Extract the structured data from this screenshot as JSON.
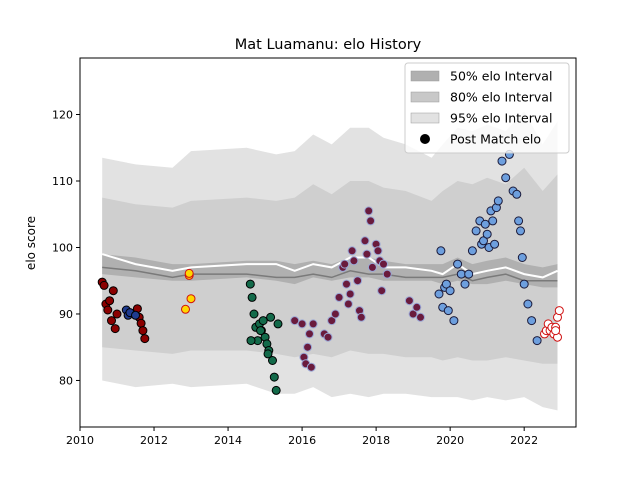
{
  "chart_data": {
    "type": "scatter",
    "title": "Mat Luamanu: elo History",
    "xlabel": "",
    "ylabel": "elo score",
    "xlim": [
      2010.0,
      2023.4
    ],
    "ylim": [
      73,
      128.5
    ],
    "xticks": [
      2010,
      2012,
      2014,
      2016,
      2018,
      2020,
      2022
    ],
    "xtick_labels": [
      "2010",
      "2012",
      "2014",
      "2016",
      "2018",
      "2020",
      "2022"
    ],
    "yticks": [
      80,
      90,
      100,
      110,
      120
    ],
    "ytick_labels": [
      "80",
      "90",
      "100",
      "110",
      "120"
    ],
    "grid": false,
    "legend_position": "top-right",
    "legend": [
      {
        "label": "50% elo Interval",
        "kind": "patch",
        "color": "#b0b0b0"
      },
      {
        "label": "80% elo Interval",
        "kind": "patch",
        "color": "#c8c8c8"
      },
      {
        "label": "95% elo Interval",
        "kind": "patch",
        "color": "#e2e2e2"
      },
      {
        "label": "Post Match elo",
        "kind": "marker",
        "color": "#000000"
      }
    ],
    "band_x": [
      2010.6,
      2011.5,
      2012.5,
      2013.0,
      2014.5,
      2015.3,
      2015.8,
      2016.3,
      2016.8,
      2017.3,
      2017.8,
      2018.2,
      2018.8,
      2019.5,
      2019.8,
      2020.2,
      2020.6,
      2021.0,
      2021.5,
      2022.0,
      2022.5,
      2022.9
    ],
    "bands": {
      "p95_upper": [
        113.5,
        112.5,
        112.0,
        114.5,
        115.0,
        114.0,
        114.5,
        117.0,
        115.5,
        118.0,
        118.0,
        116.5,
        115.5,
        113.5,
        115.5,
        118.0,
        117.5,
        118.5,
        117.5,
        120.5,
        115.5,
        119.0
      ],
      "p80_upper": [
        107.5,
        106.5,
        106.0,
        107.0,
        107.5,
        107.0,
        107.5,
        109.5,
        108.0,
        110.0,
        110.0,
        109.0,
        108.5,
        107.0,
        108.5,
        110.0,
        109.5,
        110.5,
        109.5,
        112.0,
        108.5,
        111.0
      ],
      "p50_upper": [
        99.0,
        98.5,
        97.5,
        97.5,
        98.0,
        98.0,
        97.5,
        98.0,
        97.5,
        98.5,
        98.5,
        98.0,
        97.5,
        97.5,
        97.5,
        98.5,
        97.5,
        98.0,
        98.5,
        97.5,
        97.0,
        97.5
      ],
      "median": [
        97.0,
        96.5,
        95.5,
        96.0,
        96.0,
        95.5,
        95.5,
        96.0,
        95.5,
        96.5,
        96.0,
        96.0,
        95.5,
        95.5,
        95.5,
        96.0,
        95.0,
        95.5,
        96.0,
        95.0,
        95.0,
        95.0
      ],
      "mean": [
        99.0,
        97.5,
        96.5,
        97.0,
        97.5,
        97.5,
        96.5,
        97.5,
        97.0,
        98.5,
        98.5,
        97.0,
        97.0,
        96.5,
        96.0,
        97.5,
        96.0,
        96.5,
        97.0,
        96.0,
        95.5,
        96.5
      ],
      "p50_lower": [
        96.0,
        95.5,
        95.0,
        95.0,
        95.5,
        95.0,
        94.5,
        95.5,
        95.0,
        95.5,
        95.5,
        95.0,
        95.0,
        95.0,
        94.5,
        95.0,
        94.5,
        94.5,
        95.0,
        94.5,
        94.0,
        94.0
      ],
      "p80_lower": [
        85.0,
        84.5,
        84.0,
        84.5,
        84.5,
        84.0,
        83.5,
        84.0,
        83.5,
        84.5,
        84.0,
        84.0,
        83.5,
        83.5,
        83.0,
        83.5,
        83.0,
        83.0,
        83.5,
        83.0,
        82.5,
        82.5
      ],
      "p95_lower": [
        80.0,
        79.0,
        79.5,
        79.0,
        79.5,
        78.0,
        78.0,
        79.0,
        77.5,
        78.0,
        77.5,
        78.0,
        78.0,
        77.5,
        77.5,
        77.5,
        77.0,
        77.5,
        77.0,
        77.5,
        76.0,
        75.5
      ]
    },
    "series": [
      {
        "face": "#8b0000",
        "edge": "#000000",
        "x": [
          2010.6,
          2010.65,
          2010.7,
          2010.75,
          2010.8,
          2010.85,
          2010.9,
          2010.95,
          2011.0,
          2011.55,
          2011.6,
          2011.65,
          2011.7,
          2011.75
        ],
        "y": [
          94.8,
          94.3,
          91.5,
          90.6,
          92.0,
          89.0,
          93.5,
          87.8,
          90.0,
          90.8,
          89.5,
          88.6,
          87.5,
          86.3
        ]
      },
      {
        "face": "#1f3b8f",
        "edge": "#000000",
        "x": [
          2011.25,
          2011.3,
          2011.35,
          2011.5
        ],
        "y": [
          90.6,
          89.8,
          90.2,
          89.8
        ]
      },
      {
        "face": "#ffd700",
        "edge": "#d01010",
        "x": [
          2012.85,
          2012.95,
          2013.0,
          2012.95
        ],
        "y": [
          90.7,
          95.8,
          92.3,
          96.1
        ]
      },
      {
        "face": "#136a4a",
        "edge": "#000000",
        "x": [
          2014.6,
          2014.65,
          2014.7,
          2014.75,
          2014.8,
          2014.85,
          2014.9,
          2014.95,
          2015.0,
          2015.05,
          2015.1,
          2015.15,
          2015.2,
          2015.25,
          2015.3,
          2015.35,
          2014.62,
          2014.88,
          2015.08
        ],
        "y": [
          94.5,
          92.5,
          90.0,
          88.0,
          86.0,
          88.5,
          87.5,
          89.0,
          86.5,
          85.5,
          84.5,
          89.5,
          83.0,
          80.5,
          78.5,
          88.5,
          86.0,
          87.5,
          84.0
        ]
      },
      {
        "face": "#6a1b3d",
        "edge": "#9aa7d6",
        "x": [
          2015.8,
          2016.0,
          2016.05,
          2016.1,
          2016.15,
          2016.2,
          2016.3,
          2016.6,
          2016.7,
          2016.8,
          2016.9,
          2017.0,
          2017.1,
          2017.15,
          2017.2,
          2017.3,
          2017.35,
          2017.4,
          2017.5,
          2017.55,
          2017.6,
          2017.7,
          2017.75,
          2017.8,
          2017.85,
          2017.9,
          2018.0,
          2018.05,
          2018.1,
          2018.15,
          2018.2,
          2018.3,
          2018.9,
          2019.0,
          2019.1,
          2019.2,
          2016.25,
          2017.25
        ],
        "y": [
          89.0,
          88.5,
          83.5,
          82.5,
          85.0,
          87.0,
          88.5,
          87.0,
          86.5,
          89.0,
          90.0,
          92.5,
          97.0,
          97.5,
          94.5,
          93.0,
          99.5,
          98.0,
          95.0,
          90.5,
          89.5,
          101.0,
          99.0,
          105.5,
          104.0,
          97.0,
          100.5,
          99.5,
          98.0,
          93.5,
          97.5,
          96.0,
          92.0,
          90.0,
          91.0,
          89.5,
          82.0,
          91.5
        ]
      },
      {
        "face": "#6d9fde",
        "edge": "#1a1a3a",
        "x": [
          2019.7,
          2019.75,
          2019.8,
          2019.85,
          2019.9,
          2019.95,
          2020.0,
          2020.1,
          2020.2,
          2020.3,
          2020.4,
          2020.5,
          2020.6,
          2020.7,
          2020.8,
          2020.85,
          2020.9,
          2020.95,
          2021.0,
          2021.05,
          2021.1,
          2021.15,
          2021.2,
          2021.25,
          2021.3,
          2021.4,
          2021.5,
          2021.6,
          2021.7,
          2021.8,
          2021.85,
          2021.9,
          2021.95,
          2022.0,
          2022.1,
          2022.2,
          2022.35
        ],
        "y": [
          93.0,
          99.5,
          91.0,
          94.0,
          94.5,
          90.5,
          93.5,
          89.0,
          97.5,
          96.0,
          94.5,
          96.0,
          99.5,
          102.5,
          104.0,
          100.5,
          101.0,
          103.5,
          102.0,
          100.0,
          105.5,
          104.0,
          100.5,
          106.0,
          107.0,
          113.0,
          110.5,
          114.0,
          108.5,
          108.0,
          104.0,
          102.5,
          98.5,
          94.5,
          91.5,
          89.0,
          86.0
        ]
      },
      {
        "face": "#ffffff",
        "edge": "#d01010",
        "x": [
          2022.55,
          2022.6,
          2022.65,
          2022.7,
          2022.75,
          2022.8,
          2022.85,
          2022.9,
          2022.95,
          2022.9,
          2022.85
        ],
        "y": [
          87.0,
          87.5,
          88.5,
          87.5,
          88.0,
          87.0,
          88.0,
          89.5,
          90.5,
          86.5,
          87.5
        ]
      }
    ]
  }
}
